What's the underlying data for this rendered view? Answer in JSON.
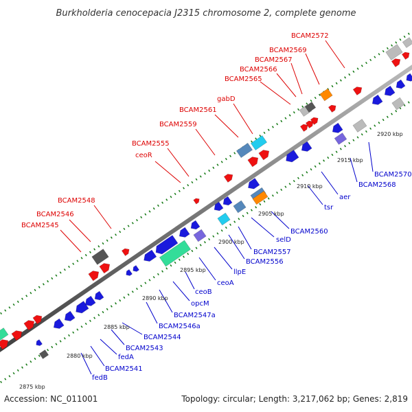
{
  "title": "Burkholderia cenocepacia J2315 chromosome 2, complete genome",
  "footer": {
    "accession": "Accession: NC_011001",
    "info": "Topology: circular; Length: 3,217,062 bp; Genes: 2,819"
  },
  "colors": {
    "backbone": "#7a7a7a",
    "forward_label": "#dd0000",
    "reverse_label": "#0000cc",
    "tick": "#117711",
    "red_cds": "#ee1111",
    "blue_cds": "#1a1add",
    "grey_cds": "#bbbbbb",
    "dark_cds": "#555555",
    "orange_cds": "#ff8800",
    "steel_cds": "#5588bb",
    "cyan_cds": "#22ccee",
    "violet_cds": "#7766dd",
    "green_cds": "#33dd99"
  },
  "scale_labels": [
    "2875 kbp",
    "2880 kbp",
    "2885 kbp",
    "2890 kbp",
    "2895 kbp",
    "2900 kbp",
    "2905 kbp",
    "2910 kbp",
    "2915 kbp",
    "2920 kbp"
  ],
  "forward_labels": [
    "BCAM2545",
    "BCAM2546",
    "BCAM2548",
    "ceoR",
    "BCAM2555",
    "BCAM2559",
    "BCAM2561",
    "gabD",
    "BCAM2565",
    "BCAM2566",
    "BCAM2567",
    "BCAM2569",
    "BCAM2572"
  ],
  "reverse_labels": [
    "fedB",
    "BCAM2541",
    "fedA",
    "BCAM2543",
    "BCAM2544",
    "BCAM2546a",
    "BCAM2547a",
    "opcM",
    "ceoB",
    "ceoA",
    "llpE",
    "BCAM2556",
    "BCAM2557",
    "selD",
    "BCAM2560",
    "tsr",
    "aer",
    "BCAM2568",
    "BCAM2570"
  ]
}
